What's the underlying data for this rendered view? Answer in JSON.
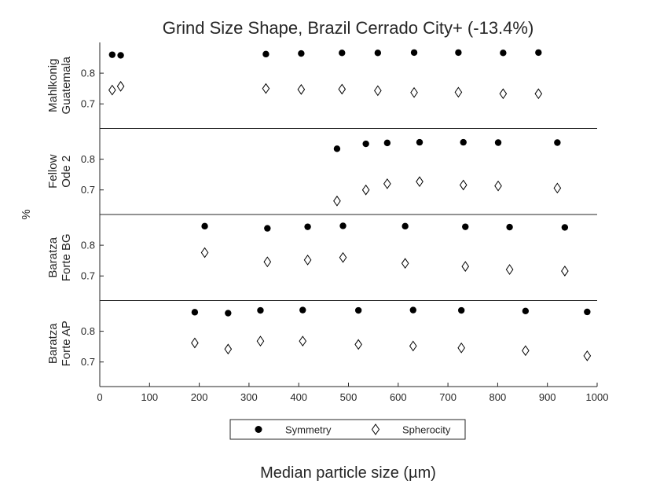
{
  "chart_data": {
    "type": "scatter",
    "title": "Grind Size Shape, Brazil Cerrado City+ (-13.4%)",
    "xlabel": "Median particle size (µm)",
    "ylabel": "%",
    "xlim": [
      0,
      1000
    ],
    "ylim": [
      0.62,
      0.9
    ],
    "xticks": [
      0,
      100,
      200,
      300,
      400,
      500,
      600,
      700,
      800,
      900,
      1000
    ],
    "yticks": [
      0.7,
      0.8
    ],
    "legend": {
      "position": "bottom",
      "entries": [
        "Symmetry",
        "Spherocity"
      ]
    },
    "panels": [
      {
        "label_lines": [
          "Mahlkonig",
          "Guatemala"
        ],
        "series": [
          {
            "name": "Symmetry",
            "marker": "filled-circle",
            "x": [
              25,
              42,
              334,
              405,
              487,
              559,
              632,
              721,
              811,
              882
            ],
            "y": [
              0.86,
              0.858,
              0.862,
              0.864,
              0.866,
              0.866,
              0.867,
              0.867,
              0.866,
              0.867
            ]
          },
          {
            "name": "Spherocity",
            "marker": "open-diamond",
            "x": [
              25,
              42,
              334,
              405,
              487,
              559,
              632,
              721,
              811,
              882
            ],
            "y": [
              0.745,
              0.757,
              0.75,
              0.747,
              0.748,
              0.743,
              0.737,
              0.738,
              0.733,
              0.733
            ]
          }
        ]
      },
      {
        "label_lines": [
          "Fellow",
          "Ode 2"
        ],
        "series": [
          {
            "name": "Symmetry",
            "marker": "filled-circle",
            "x": [
              477,
              535,
              578,
              643,
              731,
              801,
              920
            ],
            "y": [
              0.834,
              0.85,
              0.853,
              0.855,
              0.855,
              0.854,
              0.854
            ]
          },
          {
            "name": "Spherocity",
            "marker": "open-diamond",
            "x": [
              477,
              535,
              578,
              643,
              731,
              801,
              920
            ],
            "y": [
              0.664,
              0.7,
              0.72,
              0.727,
              0.716,
              0.713,
              0.706
            ]
          }
        ]
      },
      {
        "label_lines": [
          "Baratza",
          "Forte BG"
        ],
        "series": [
          {
            "name": "Symmetry",
            "marker": "filled-circle",
            "x": [
              211,
              337,
              418,
              489,
              614,
              735,
              824,
              935
            ],
            "y": [
              0.862,
              0.855,
              0.86,
              0.863,
              0.862,
              0.86,
              0.859,
              0.858
            ]
          },
          {
            "name": "Spherocity",
            "marker": "open-diamond",
            "x": [
              211,
              337,
              418,
              489,
              614,
              735,
              824,
              935
            ],
            "y": [
              0.776,
              0.746,
              0.752,
              0.76,
              0.741,
              0.731,
              0.721,
              0.716
            ]
          }
        ]
      },
      {
        "label_lines": [
          "Baratza",
          "Forte AP"
        ],
        "series": [
          {
            "name": "Symmetry",
            "marker": "filled-circle",
            "x": [
              191,
              258,
              323,
              408,
              520,
              630,
              727,
              856,
              980
            ],
            "y": [
              0.862,
              0.859,
              0.868,
              0.869,
              0.868,
              0.869,
              0.868,
              0.866,
              0.863
            ]
          },
          {
            "name": "Spherocity",
            "marker": "open-diamond",
            "x": [
              191,
              258,
              323,
              408,
              520,
              630,
              727,
              856,
              980
            ],
            "y": [
              0.762,
              0.742,
              0.768,
              0.768,
              0.757,
              0.752,
              0.746,
              0.737,
              0.72
            ]
          }
        ]
      }
    ]
  }
}
